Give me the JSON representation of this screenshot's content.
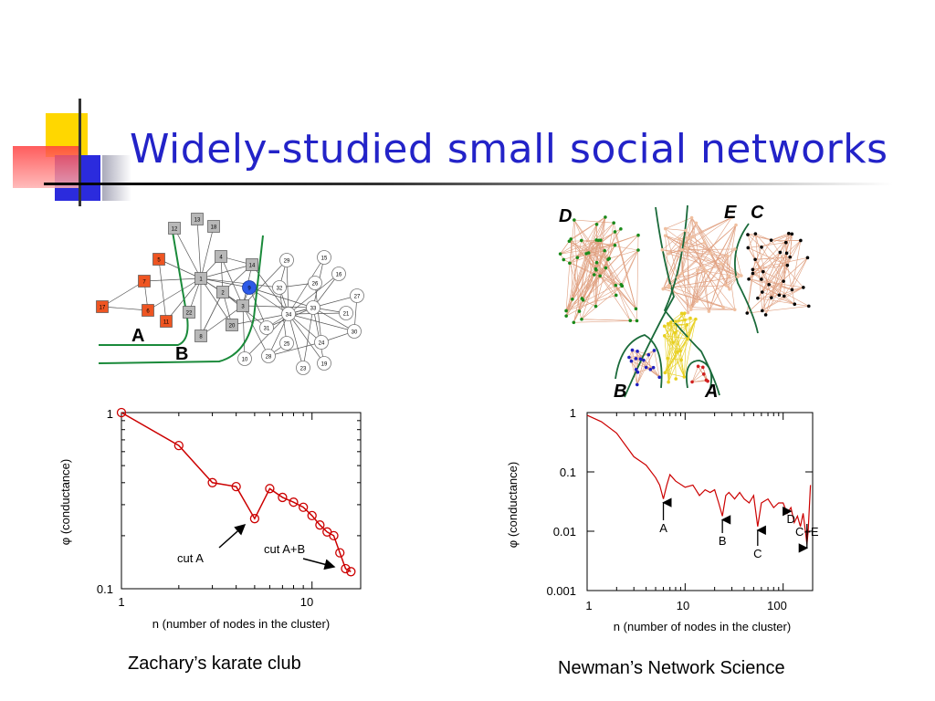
{
  "slide": {
    "title": "Widely-studied small social networks",
    "caption_left": "Zachary’s karate club",
    "caption_right": "Newman’s Network Science"
  },
  "karate_network": {
    "region_labels": [
      "A",
      "B"
    ],
    "node_labels": [
      "12",
      "13",
      "18",
      "4",
      "14",
      "1",
      "2",
      "3",
      "7",
      "5",
      "17",
      "6",
      "11",
      "22",
      "20",
      "8",
      "9",
      "29",
      "15",
      "26",
      "16",
      "32",
      "27",
      "34",
      "33",
      "21",
      "31",
      "25",
      "24",
      "30",
      "10",
      "28",
      "23",
      "19"
    ]
  },
  "newman_network": {
    "region_labels": [
      "D",
      "E",
      "C",
      "B",
      "A"
    ]
  },
  "chart_data": [
    {
      "type": "line",
      "title": "",
      "xlabel": "n (number of nodes in the cluster)",
      "ylabel": "φ (conductance)",
      "xscale": "log",
      "yscale": "log",
      "xlim": [
        1,
        18
      ],
      "ylim": [
        0.1,
        1
      ],
      "xticks": [
        "1",
        "10"
      ],
      "yticks": [
        "1",
        "0.1"
      ],
      "series": [
        {
          "x": [
            1,
            2,
            3,
            4,
            5,
            6,
            7,
            8,
            9,
            10,
            11,
            12,
            13,
            14,
            15,
            16
          ],
          "y": [
            1.0,
            0.65,
            0.4,
            0.38,
            0.25,
            0.37,
            0.33,
            0.31,
            0.29,
            0.26,
            0.23,
            0.21,
            0.2,
            0.16,
            0.13,
            0.125
          ],
          "color": "#cc0000",
          "marker": "circle"
        }
      ],
      "annotations": [
        {
          "text": "cut A",
          "x": 5,
          "y": 0.25
        },
        {
          "text": "cut A+B",
          "x": 15,
          "y": 0.13
        }
      ]
    },
    {
      "type": "line",
      "title": "",
      "xlabel": "n (number of nodes in the cluster)",
      "ylabel": "φ (conductance)",
      "xscale": "log",
      "yscale": "log",
      "xlim": [
        1,
        200
      ],
      "ylim": [
        0.001,
        1
      ],
      "xticks": [
        "1",
        "10",
        "100"
      ],
      "yticks": [
        "1",
        "0.1",
        "0.01",
        "0.001"
      ],
      "series": [
        {
          "x": [
            1,
            1.4,
            2,
            3,
            4,
            5,
            5.5,
            6,
            6.5,
            7,
            8,
            10,
            12,
            14,
            16,
            18,
            20,
            22,
            24,
            26,
            28,
            32,
            36,
            40,
            45,
            50,
            55,
            60,
            70,
            80,
            90,
            100,
            110,
            120,
            130,
            140,
            150,
            160,
            170,
            175,
            180,
            190
          ],
          "y": [
            0.9,
            0.7,
            0.45,
            0.18,
            0.13,
            0.08,
            0.06,
            0.035,
            0.06,
            0.09,
            0.07,
            0.055,
            0.06,
            0.04,
            0.05,
            0.045,
            0.05,
            0.03,
            0.018,
            0.04,
            0.045,
            0.035,
            0.045,
            0.035,
            0.03,
            0.04,
            0.012,
            0.03,
            0.035,
            0.025,
            0.03,
            0.03,
            0.02,
            0.025,
            0.014,
            0.018,
            0.012,
            0.02,
            0.009,
            0.006,
            0.01,
            0.06
          ],
          "color": "#cc0000",
          "marker": "none"
        }
      ],
      "annotations": [
        {
          "text": "A",
          "x": 6
        },
        {
          "text": "B",
          "x": 24
        },
        {
          "text": "C",
          "x": 55
        },
        {
          "text": "D",
          "x": 120
        },
        {
          "text": "C+E",
          "x": 175
        }
      ]
    }
  ]
}
